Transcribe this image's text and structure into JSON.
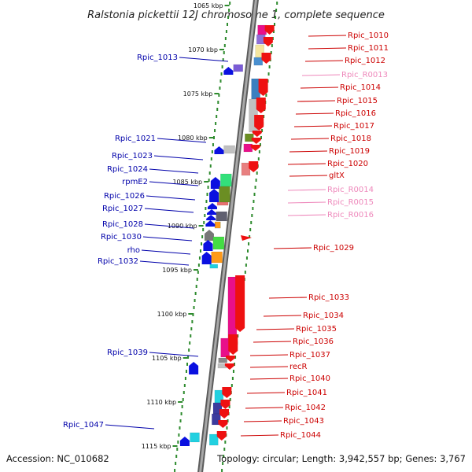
{
  "title": "Ralstonia pickettii 12J chromosome 1, complete sequence",
  "accession": "Accession: NC_010682",
  "topology": "Topology: circular; Length: 3,942,557 bp; Genes: 3,767",
  "colors": {
    "plus_label": "#cc0000",
    "minus_label": "#0000aa",
    "rna_label": "#ee88bb",
    "backbone": "#8a8a8a",
    "ruler_dots": "#2e8b2e"
  },
  "scale_marks": [
    {
      "label": "1065 kbp",
      "kb": 1065
    },
    {
      "label": "1070 kbp",
      "kb": 1070
    },
    {
      "label": "1075 kbp",
      "kb": 1075
    },
    {
      "label": "1080 kbp",
      "kb": 1080
    },
    {
      "label": "1085 kbp",
      "kb": 1085
    },
    {
      "label": "1090 kbp",
      "kb": 1090
    },
    {
      "label": "1095 kbp",
      "kb": 1095
    },
    {
      "label": "1100 kbp",
      "kb": 1100
    },
    {
      "label": "1105 kbp",
      "kb": 1105
    },
    {
      "label": "1110 kbp",
      "kb": 1110
    },
    {
      "label": "1115 kbp",
      "kb": 1115
    }
  ],
  "labels_plus": [
    {
      "text": "Rpic_1010",
      "type": "cds"
    },
    {
      "text": "Rpic_1011",
      "type": "cds"
    },
    {
      "text": "Rpic_1012",
      "type": "cds"
    },
    {
      "text": "Rpic_R0013",
      "type": "rna"
    },
    {
      "text": "Rpic_1014",
      "type": "cds"
    },
    {
      "text": "Rpic_1015",
      "type": "cds"
    },
    {
      "text": "Rpic_1016",
      "type": "cds"
    },
    {
      "text": "Rpic_1017",
      "type": "cds"
    },
    {
      "text": "Rpic_1018",
      "type": "cds"
    },
    {
      "text": "Rpic_1019",
      "type": "cds"
    },
    {
      "text": "Rpic_1020",
      "type": "cds"
    },
    {
      "text": "gltX",
      "type": "cds"
    },
    {
      "text": "Rpic_R0014",
      "type": "rna"
    },
    {
      "text": "Rpic_R0015",
      "type": "rna"
    },
    {
      "text": "Rpic_R0016",
      "type": "rna"
    },
    {
      "text": "Rpic_1029",
      "type": "cds"
    },
    {
      "text": "Rpic_1033",
      "type": "cds"
    },
    {
      "text": "Rpic_1034",
      "type": "cds"
    },
    {
      "text": "Rpic_1035",
      "type": "cds"
    },
    {
      "text": "Rpic_1036",
      "type": "cds"
    },
    {
      "text": "Rpic_1037",
      "type": "cds"
    },
    {
      "text": "recR",
      "type": "cds"
    },
    {
      "text": "Rpic_1040",
      "type": "cds"
    },
    {
      "text": "Rpic_1041",
      "type": "cds"
    },
    {
      "text": "Rpic_1042",
      "type": "cds"
    },
    {
      "text": "Rpic_1043",
      "type": "cds"
    },
    {
      "text": "Rpic_1044",
      "type": "cds"
    }
  ],
  "labels_minus": [
    {
      "text": "Rpic_1013"
    },
    {
      "text": "Rpic_1021"
    },
    {
      "text": "Rpic_1023"
    },
    {
      "text": "Rpic_1024"
    },
    {
      "text": "rpmE2"
    },
    {
      "text": "Rpic_1026"
    },
    {
      "text": "Rpic_1027"
    },
    {
      "text": "Rpic_1028"
    },
    {
      "text": "Rpic_1030"
    },
    {
      "text": "rho"
    },
    {
      "text": "Rpic_1032"
    },
    {
      "text": "Rpic_1039"
    },
    {
      "text": "Rpic_1047"
    }
  ]
}
